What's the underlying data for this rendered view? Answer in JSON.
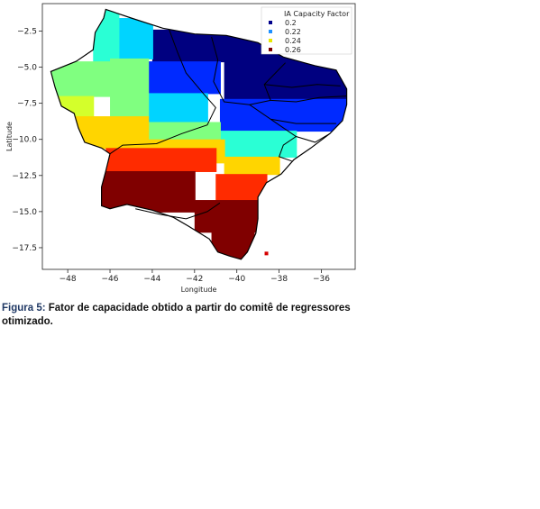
{
  "chart_data": {
    "type": "heatmap",
    "xlabel": "Longitude",
    "ylabel": "Latitude",
    "xlim": [
      -49.2,
      -34.4
    ],
    "ylim": [
      -19.0,
      -0.6
    ],
    "xticks": [
      -48,
      -46,
      -44,
      -42,
      -40,
      -38,
      -36
    ],
    "xtick_labels": [
      "−48",
      "−46",
      "−44",
      "−42",
      "−40",
      "−38",
      "−36"
    ],
    "yticks": [
      -2.5,
      -5.0,
      -7.5,
      -10.0,
      -12.5,
      -15.0,
      -17.5
    ],
    "ytick_labels": [
      "−2.5",
      "−5.0",
      "−7.5",
      "−10.0",
      "−12.5",
      "−15.0",
      "−17.5"
    ],
    "legend": {
      "title": "IA Capacity Factor",
      "placement": "top-right",
      "entries": [
        {
          "label": "0.2",
          "color": "#00008b"
        },
        {
          "label": "0.22",
          "color": "#1e90ff"
        },
        {
          "label": "0.24",
          "color": "#e8e800"
        },
        {
          "label": "0.26",
          "color": "#7f0000"
        }
      ]
    },
    "colormap": "jet",
    "value_range": [
      0.2,
      0.26
    ],
    "region_outline": [
      [
        -46.2,
        -1.0
      ],
      [
        -45.0,
        -1.6
      ],
      [
        -43.5,
        -2.3
      ],
      [
        -42.0,
        -2.7
      ],
      [
        -40.5,
        -2.8
      ],
      [
        -39.0,
        -3.3
      ],
      [
        -37.8,
        -4.3
      ],
      [
        -36.3,
        -4.9
      ],
      [
        -35.3,
        -5.2
      ],
      [
        -34.8,
        -6.5
      ],
      [
        -34.8,
        -7.6
      ],
      [
        -35.0,
        -8.7
      ],
      [
        -35.6,
        -9.6
      ],
      [
        -36.5,
        -10.6
      ],
      [
        -37.3,
        -11.4
      ],
      [
        -37.9,
        -12.4
      ],
      [
        -38.6,
        -13.0
      ],
      [
        -39.0,
        -14.0
      ],
      [
        -39.0,
        -15.5
      ],
      [
        -39.1,
        -16.5
      ],
      [
        -39.5,
        -17.8
      ],
      [
        -39.8,
        -18.3
      ],
      [
        -40.3,
        -18.1
      ],
      [
        -40.9,
        -17.8
      ],
      [
        -41.3,
        -16.9
      ],
      [
        -42.3,
        -16.0
      ],
      [
        -43.0,
        -15.4
      ],
      [
        -44.0,
        -14.9
      ],
      [
        -45.2,
        -14.5
      ],
      [
        -46.0,
        -14.8
      ],
      [
        -46.4,
        -14.6
      ],
      [
        -46.4,
        -13.3
      ],
      [
        -46.2,
        -12.2
      ],
      [
        -46.0,
        -11.0
      ],
      [
        -46.4,
        -10.6
      ],
      [
        -47.2,
        -10.2
      ],
      [
        -47.5,
        -9.2
      ],
      [
        -47.7,
        -8.2
      ],
      [
        -48.3,
        -7.7
      ],
      [
        -48.6,
        -6.4
      ],
      [
        -48.8,
        -5.3
      ],
      [
        -47.6,
        -4.6
      ],
      [
        -46.8,
        -3.8
      ],
      [
        -46.7,
        -2.6
      ],
      [
        -46.3,
        -1.6
      ],
      [
        -46.2,
        -1.0
      ]
    ],
    "state_borders": [
      [
        [
          -43.2,
          -2.4
        ],
        [
          -42.8,
          -4.0
        ],
        [
          -42.4,
          -5.4
        ],
        [
          -41.6,
          -6.8
        ],
        [
          -41.0,
          -7.8
        ],
        [
          -41.4,
          -9.0
        ],
        [
          -42.6,
          -9.6
        ],
        [
          -43.8,
          -10.3
        ],
        [
          -45.4,
          -10.4
        ],
        [
          -46.0,
          -11.0
        ]
      ],
      [
        [
          -41.2,
          -2.9
        ],
        [
          -40.9,
          -4.5
        ],
        [
          -41.1,
          -6.0
        ],
        [
          -40.6,
          -7.4
        ],
        [
          -39.4,
          -7.6
        ],
        [
          -38.4,
          -7.3
        ],
        [
          -38.7,
          -6.2
        ],
        [
          -37.7,
          -4.7
        ]
      ],
      [
        [
          -38.4,
          -7.3
        ],
        [
          -37.2,
          -7.4
        ],
        [
          -36.1,
          -7.1
        ],
        [
          -34.8,
          -7.0
        ]
      ],
      [
        [
          -38.7,
          -6.2
        ],
        [
          -37.4,
          -6.4
        ],
        [
          -36.2,
          -6.2
        ],
        [
          -35.1,
          -6.3
        ]
      ],
      [
        [
          -39.4,
          -7.6
        ],
        [
          -38.4,
          -8.6
        ],
        [
          -37.2,
          -8.9
        ],
        [
          -36.2,
          -8.9
        ],
        [
          -35.3,
          -8.9
        ]
      ],
      [
        [
          -38.4,
          -8.6
        ],
        [
          -37.2,
          -9.8
        ],
        [
          -36.3,
          -10.2
        ],
        [
          -35.6,
          -9.6
        ]
      ],
      [
        [
          -37.2,
          -9.8
        ],
        [
          -37.8,
          -10.4
        ],
        [
          -38.0,
          -11.2
        ],
        [
          -37.4,
          -11.5
        ]
      ],
      [
        [
          -40.8,
          -14.4
        ],
        [
          -41.4,
          -15.0
        ],
        [
          -42.4,
          -15.5
        ],
        [
          -43.6,
          -15.2
        ],
        [
          -44.8,
          -14.8
        ]
      ]
    ],
    "zones": [
      {
        "value": 0.2,
        "lon": [
          -40.6,
          -34.6
        ],
        "lat": [
          -2.6,
          -7.2
        ]
      },
      {
        "value": 0.2,
        "lon": [
          -44.0,
          -40.6
        ],
        "lat": [
          -2.4,
          -4.6
        ]
      },
      {
        "value": 0.21,
        "lon": [
          -44.2,
          -40.8
        ],
        "lat": [
          -4.6,
          -6.8
        ]
      },
      {
        "value": 0.21,
        "lon": [
          -40.8,
          -34.8
        ],
        "lat": [
          -7.2,
          -9.4
        ]
      },
      {
        "value": 0.22,
        "lon": [
          -45.6,
          -44.0
        ],
        "lat": [
          -1.6,
          -4.4
        ]
      },
      {
        "value": 0.22,
        "lon": [
          -44.2,
          -41.4
        ],
        "lat": [
          -6.8,
          -8.8
        ]
      },
      {
        "value": 0.225,
        "lon": [
          -46.8,
          -45.6
        ],
        "lat": [
          -1.0,
          -4.6
        ]
      },
      {
        "value": 0.225,
        "lon": [
          -41.4,
          -37.2
        ],
        "lat": [
          -9.4,
          -11.2
        ]
      },
      {
        "value": 0.23,
        "lon": [
          -48.8,
          -46.0
        ],
        "lat": [
          -4.6,
          -7.0
        ]
      },
      {
        "value": 0.23,
        "lon": [
          -46.0,
          -44.2
        ],
        "lat": [
          -4.4,
          -8.4
        ]
      },
      {
        "value": 0.23,
        "lon": [
          -44.2,
          -40.8
        ],
        "lat": [
          -8.8,
          -10.0
        ]
      },
      {
        "value": 0.235,
        "lon": [
          -48.6,
          -46.8
        ],
        "lat": [
          -7.0,
          -8.4
        ]
      },
      {
        "value": 0.24,
        "lon": [
          -47.8,
          -44.2
        ],
        "lat": [
          -8.4,
          -10.6
        ]
      },
      {
        "value": 0.24,
        "lon": [
          -44.2,
          -40.6
        ],
        "lat": [
          -10.0,
          -11.6
        ]
      },
      {
        "value": 0.24,
        "lon": [
          -40.6,
          -38.0
        ],
        "lat": [
          -11.2,
          -12.4
        ]
      },
      {
        "value": 0.25,
        "lon": [
          -46.2,
          -41.0
        ],
        "lat": [
          -10.6,
          -12.2
        ]
      },
      {
        "value": 0.25,
        "lon": [
          -41.0,
          -38.6
        ],
        "lat": [
          -12.4,
          -14.2
        ]
      },
      {
        "value": 0.26,
        "lon": [
          -46.4,
          -42.0
        ],
        "lat": [
          -12.2,
          -15.0
        ]
      },
      {
        "value": 0.26,
        "lon": [
          -42.0,
          -39.0
        ],
        "lat": [
          -14.2,
          -16.4
        ]
      },
      {
        "value": 0.26,
        "lon": [
          -41.2,
          -39.2
        ],
        "lat": [
          -16.4,
          -18.4
        ]
      }
    ],
    "isolated_cell": {
      "value": 0.255,
      "lon": -38.6,
      "lat": -17.9
    }
  },
  "caption": {
    "label": "Figura 5:",
    "text": " Fator de capacidade obtido a partir do comitê de regressores otimizado."
  }
}
